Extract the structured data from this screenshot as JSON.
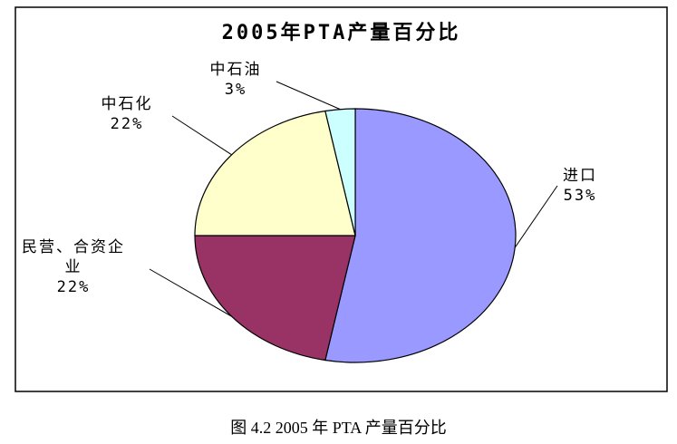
{
  "chart_data": {
    "type": "pie",
    "title": "2005年PTA产量百分比",
    "categories": [
      "进口",
      "民营、合资企业",
      "中石化",
      "中石油"
    ],
    "values": [
      53,
      22,
      22,
      3
    ],
    "value_labels": [
      "53%",
      "22%",
      "22%",
      "3%"
    ],
    "colors": [
      "#9999ff",
      "#993366",
      "#ffffcc",
      "#ccffff"
    ]
  },
  "caption": "图 4.2 2005 年 PTA 产量百分比"
}
